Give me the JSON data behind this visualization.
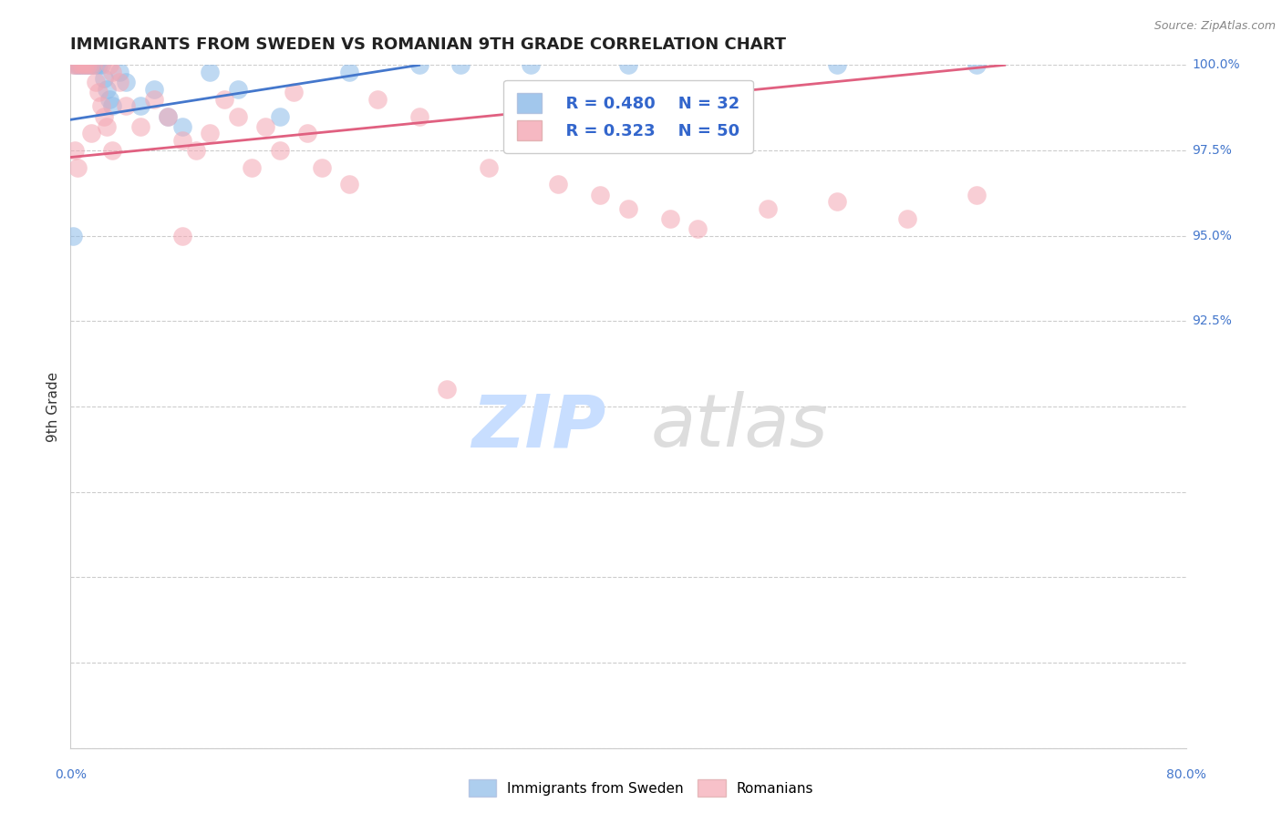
{
  "title": "IMMIGRANTS FROM SWEDEN VS ROMANIAN 9TH GRADE CORRELATION CHART",
  "source_text": "Source: ZipAtlas.com",
  "ylabel": "9th Grade",
  "xlim": [
    0.0,
    80.0
  ],
  "ylim": [
    80.0,
    100.0
  ],
  "xticks": [
    0.0,
    20.0,
    40.0,
    60.0,
    80.0
  ],
  "yticks": [
    80.0,
    82.5,
    85.0,
    87.5,
    90.0,
    92.5,
    95.0,
    97.5,
    100.0
  ],
  "xtick_labels": [
    "0.0%",
    "",
    "",
    "",
    "80.0%"
  ],
  "ytick_labels_right": {
    "80.0": "",
    "82.5": "",
    "85.0": "",
    "87.5": "",
    "90.0": "",
    "92.5": "92.5%",
    "95.0": "95.0%",
    "97.5": "97.5%",
    "100.0": "100.0%"
  },
  "blue_color": "#8BBAE8",
  "pink_color": "#F4A7B3",
  "blue_line_color": "#4477CC",
  "pink_line_color": "#E06080",
  "legend_R_blue": "R = 0.480",
  "legend_N_blue": "N = 32",
  "legend_R_pink": "R = 0.323",
  "legend_N_pink": "N = 50",
  "legend_label_blue": "Immigrants from Sweden",
  "legend_label_pink": "Romanians",
  "blue_line_x": [
    0,
    25
  ],
  "blue_line_y": [
    98.4,
    100.0
  ],
  "pink_line_x": [
    0,
    67
  ],
  "pink_line_y": [
    97.3,
    100.0
  ],
  "blue_x": [
    0.3,
    0.5,
    0.6,
    0.8,
    1.0,
    1.2,
    1.4,
    1.6,
    1.8,
    2.0,
    2.2,
    2.4,
    2.6,
    2.8,
    3.0,
    3.5,
    4.0,
    5.0,
    6.0,
    7.0,
    8.0,
    10.0,
    12.0,
    15.0,
    20.0,
    25.0,
    28.0,
    33.0,
    40.0,
    55.0,
    65.0,
    0.2
  ],
  "blue_y": [
    100.0,
    100.0,
    100.0,
    100.0,
    100.0,
    100.0,
    100.0,
    100.0,
    100.0,
    100.0,
    100.0,
    99.6,
    99.3,
    99.0,
    98.8,
    99.8,
    99.5,
    98.8,
    99.3,
    98.5,
    98.2,
    99.8,
    99.3,
    98.5,
    99.8,
    100.0,
    100.0,
    100.0,
    100.0,
    100.0,
    100.0,
    95.0
  ],
  "pink_x": [
    0.2,
    0.4,
    0.6,
    0.8,
    1.0,
    1.2,
    1.4,
    1.6,
    1.8,
    2.0,
    2.2,
    2.4,
    2.6,
    2.8,
    3.0,
    3.5,
    4.0,
    5.0,
    6.0,
    7.0,
    8.0,
    9.0,
    10.0,
    11.0,
    12.0,
    13.0,
    14.0,
    15.0,
    16.0,
    17.0,
    18.0,
    20.0,
    22.0,
    25.0,
    27.0,
    30.0,
    35.0,
    38.0,
    40.0,
    43.0,
    45.0,
    50.0,
    55.0,
    60.0,
    65.0,
    0.3,
    0.5,
    1.5,
    3.0,
    8.0
  ],
  "pink_y": [
    100.0,
    100.0,
    100.0,
    100.0,
    100.0,
    100.0,
    100.0,
    100.0,
    99.5,
    99.2,
    98.8,
    98.5,
    98.2,
    100.0,
    99.8,
    99.5,
    98.8,
    98.2,
    99.0,
    98.5,
    97.8,
    97.5,
    98.0,
    99.0,
    98.5,
    97.0,
    98.2,
    97.5,
    99.2,
    98.0,
    97.0,
    96.5,
    99.0,
    98.5,
    90.5,
    97.0,
    96.5,
    96.2,
    95.8,
    95.5,
    95.2,
    95.8,
    96.0,
    95.5,
    96.2,
    97.5,
    97.0,
    98.0,
    97.5,
    95.0
  ]
}
